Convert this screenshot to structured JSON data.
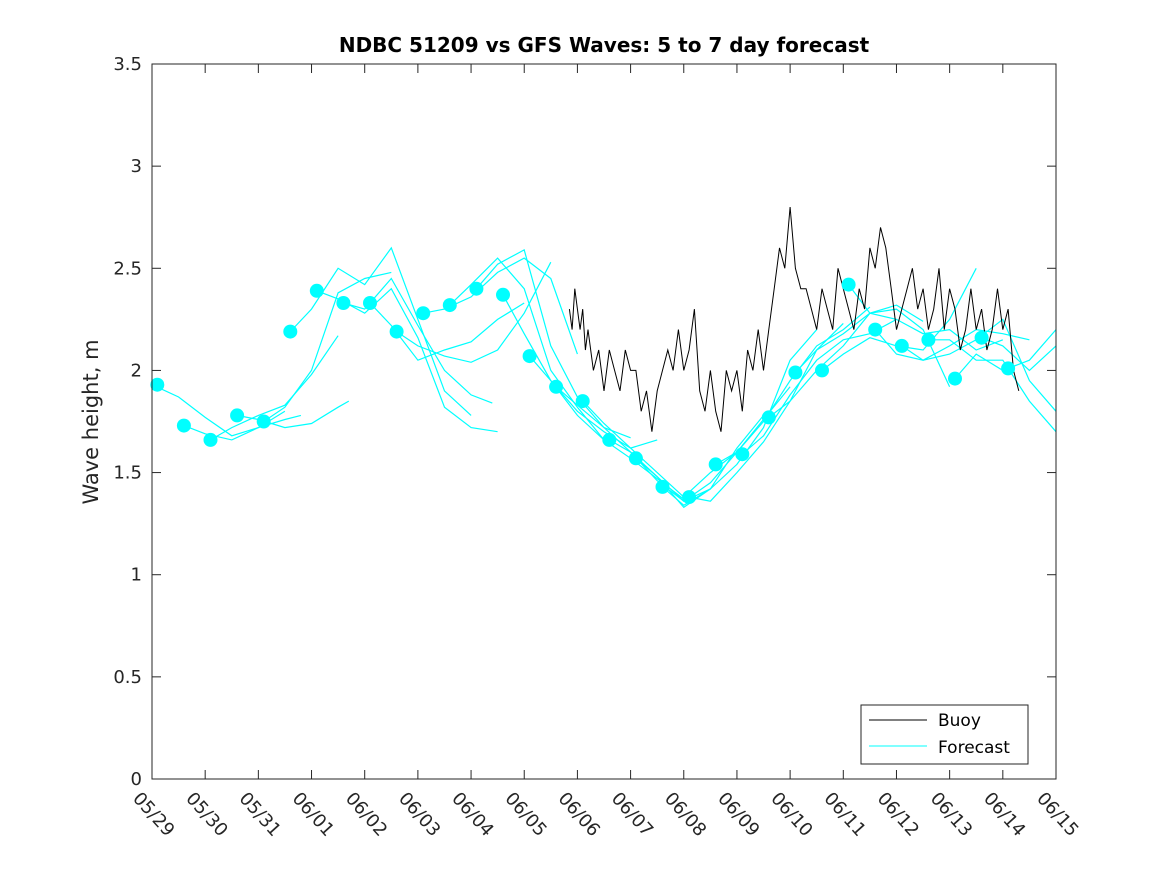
{
  "chart_data": {
    "type": "line",
    "title": "NDBC 51209 vs GFS Waves: 5 to 7 day forecast",
    "xlabel": "",
    "ylabel": "Wave height, m",
    "xlim": [
      0,
      17
    ],
    "ylim": [
      0,
      3.5
    ],
    "x_tick_labels": [
      "05/29",
      "05/30",
      "05/31",
      "06/01",
      "06/02",
      "06/03",
      "06/04",
      "06/05",
      "06/06",
      "06/07",
      "06/08",
      "06/09",
      "06/10",
      "06/11",
      "06/12",
      "06/13",
      "06/14",
      "06/15"
    ],
    "y_ticks": [
      0,
      0.5,
      1,
      1.5,
      2,
      2.5,
      3,
      3.5
    ],
    "y_tick_labels": [
      "0",
      "0.5",
      "1",
      "1.5",
      "2",
      "2.5",
      "3",
      "3.5"
    ],
    "grid": false,
    "legend": {
      "placement": "bottom-right",
      "entries": [
        "Buoy",
        "Forecast"
      ]
    },
    "colors": {
      "buoy": "#000000",
      "forecast": "#00ffff"
    },
    "series": [
      {
        "name": "Buoy",
        "x": [
          7.85,
          7.9,
          7.95,
          8.0,
          8.05,
          8.1,
          8.15,
          8.2,
          8.3,
          8.4,
          8.5,
          8.6,
          8.7,
          8.8,
          8.9,
          9.0,
          9.1,
          9.2,
          9.3,
          9.4,
          9.5,
          9.6,
          9.7,
          9.8,
          9.9,
          10.0,
          10.1,
          10.2,
          10.3,
          10.4,
          10.5,
          10.6,
          10.7,
          10.8,
          10.9,
          11.0,
          11.1,
          11.2,
          11.3,
          11.4,
          11.5,
          11.6,
          11.7,
          11.8,
          11.9,
          12.0,
          12.1,
          12.2,
          12.3,
          12.4,
          12.5,
          12.6,
          12.7,
          12.8,
          12.9,
          13.0,
          13.1,
          13.2,
          13.3,
          13.4,
          13.5,
          13.6,
          13.7,
          13.8,
          13.9,
          14.0,
          14.1,
          14.2,
          14.3,
          14.4,
          14.5,
          14.6,
          14.7,
          14.8,
          14.9,
          15.0,
          15.1,
          15.2,
          15.3,
          15.4,
          15.5,
          15.6,
          15.7,
          15.8,
          15.9,
          16.0,
          16.1,
          16.2,
          16.3
        ],
        "values": [
          2.3,
          2.2,
          2.4,
          2.3,
          2.2,
          2.3,
          2.1,
          2.2,
          2.0,
          2.1,
          1.9,
          2.1,
          2.0,
          1.9,
          2.1,
          2.0,
          2.0,
          1.8,
          1.9,
          1.7,
          1.9,
          2.0,
          2.1,
          2.0,
          2.2,
          2.0,
          2.1,
          2.3,
          1.9,
          1.8,
          2.0,
          1.8,
          1.7,
          2.0,
          1.9,
          2.0,
          1.8,
          2.1,
          2.0,
          2.2,
          2.0,
          2.2,
          2.4,
          2.6,
          2.5,
          2.8,
          2.5,
          2.4,
          2.4,
          2.3,
          2.2,
          2.4,
          2.3,
          2.2,
          2.5,
          2.4,
          2.3,
          2.2,
          2.4,
          2.3,
          2.6,
          2.5,
          2.7,
          2.6,
          2.4,
          2.2,
          2.3,
          2.4,
          2.5,
          2.3,
          2.4,
          2.2,
          2.3,
          2.5,
          2.2,
          2.4,
          2.3,
          2.1,
          2.2,
          2.4,
          2.2,
          2.3,
          2.1,
          2.2,
          2.4,
          2.2,
          2.3,
          2.0,
          1.9
        ]
      },
      {
        "name": "Forecast",
        "lines": [
          {
            "x": [
              0.0,
              0.5,
              1.0,
              1.5,
              2.0,
              2.5
            ],
            "values": [
              1.93,
              1.87,
              1.77,
              1.68,
              1.72,
              1.8
            ]
          },
          {
            "x": [
              0.6,
              1.0,
              1.5,
              2.0,
              2.5,
              2.8
            ],
            "values": [
              1.73,
              1.69,
              1.66,
              1.72,
              1.76,
              1.78
            ]
          },
          {
            "x": [
              1.1,
              1.5,
              2.0,
              2.5,
              3.0,
              3.5
            ],
            "values": [
              1.66,
              1.72,
              1.78,
              1.83,
              1.98,
              2.17
            ]
          },
          {
            "x": [
              1.6,
              2.0,
              2.5,
              3.0,
              3.5,
              3.7
            ],
            "values": [
              1.78,
              1.76,
              1.72,
              1.74,
              1.82,
              1.85
            ]
          },
          {
            "x": [
              2.1,
              2.5,
              3.0,
              3.5,
              4.0,
              4.5
            ],
            "values": [
              1.75,
              1.82,
              2.0,
              2.38,
              2.45,
              2.48
            ]
          },
          {
            "x": [
              2.6,
              3.0,
              3.5,
              4.0,
              4.5,
              5.0,
              5.5,
              6.0
            ],
            "values": [
              2.19,
              2.3,
              2.5,
              2.42,
              2.6,
              2.25,
              1.9,
              1.78
            ]
          },
          {
            "x": [
              3.1,
              3.5,
              4.0,
              4.5,
              5.0,
              5.5,
              6.0,
              6.5
            ],
            "values": [
              2.39,
              2.35,
              2.28,
              2.4,
              2.16,
              1.82,
              1.72,
              1.7
            ]
          },
          {
            "x": [
              3.6,
              4.0,
              4.5,
              5.0,
              5.5,
              6.0,
              6.4
            ],
            "values": [
              2.33,
              2.3,
              2.45,
              2.22,
              2.0,
              1.88,
              1.84
            ]
          },
          {
            "x": [
              4.1,
              4.5,
              5.0,
              5.5,
              6.0,
              6.5,
              7.0
            ],
            "values": [
              2.33,
              2.22,
              2.05,
              2.1,
              2.14,
              2.25,
              2.33
            ]
          },
          {
            "x": [
              4.6,
              5.0,
              5.5,
              6.0,
              6.5,
              7.0,
              7.5
            ],
            "values": [
              2.19,
              2.12,
              2.07,
              2.04,
              2.1,
              2.28,
              2.53
            ]
          },
          {
            "x": [
              5.1,
              5.5,
              6.0,
              6.5,
              7.0,
              7.5,
              8.0
            ],
            "values": [
              2.28,
              2.3,
              2.36,
              2.48,
              2.55,
              2.45,
              2.08
            ]
          },
          {
            "x": [
              5.6,
              6.0,
              6.5,
              7.0,
              7.5,
              8.0,
              8.5
            ],
            "values": [
              2.32,
              2.42,
              2.55,
              2.4,
              2.0,
              1.82,
              1.66
            ]
          },
          {
            "x": [
              6.1,
              6.5,
              7.0,
              7.5,
              8.0,
              8.5,
              9.0
            ],
            "values": [
              2.4,
              2.52,
              2.59,
              2.12,
              1.87,
              1.72,
              1.67
            ]
          },
          {
            "x": [
              6.6,
              7.0,
              7.5,
              8.0,
              8.5,
              9.0,
              9.5
            ],
            "values": [
              2.37,
              2.18,
              1.95,
              1.8,
              1.7,
              1.62,
              1.66
            ]
          },
          {
            "x": [
              7.1,
              7.5,
              8.0,
              8.5,
              9.0,
              9.5,
              10.0
            ],
            "values": [
              2.07,
              1.95,
              1.78,
              1.66,
              1.57,
              1.47,
              1.37
            ]
          },
          {
            "x": [
              7.6,
              8.0,
              8.5,
              9.0,
              9.5,
              10.0,
              10.5
            ],
            "values": [
              1.92,
              1.83,
              1.72,
              1.6,
              1.46,
              1.36,
              1.42
            ]
          },
          {
            "x": [
              8.1,
              8.5,
              9.0,
              9.5,
              10.0,
              10.5,
              11.0
            ],
            "values": [
              1.85,
              1.74,
              1.62,
              1.5,
              1.38,
              1.5,
              1.6
            ]
          },
          {
            "x": [
              8.6,
              9.0,
              9.5,
              10.0,
              10.5,
              11.0,
              11.5
            ],
            "values": [
              1.66,
              1.6,
              1.48,
              1.33,
              1.42,
              1.62,
              1.78
            ]
          },
          {
            "x": [
              9.1,
              9.5,
              10.0,
              10.5,
              11.0,
              11.5,
              12.0
            ],
            "values": [
              1.57,
              1.48,
              1.36,
              1.45,
              1.6,
              1.76,
              1.92
            ]
          },
          {
            "x": [
              9.6,
              10.0,
              10.5,
              11.0,
              11.5,
              12.0,
              12.5
            ],
            "values": [
              1.43,
              1.34,
              1.42,
              1.54,
              1.72,
              2.05,
              2.2
            ]
          },
          {
            "x": [
              10.1,
              10.5,
              11.0,
              11.5,
              12.0,
              12.5,
              13.0
            ],
            "values": [
              1.38,
              1.36,
              1.5,
              1.65,
              1.85,
              2.1,
              2.23
            ]
          },
          {
            "x": [
              10.6,
              11.0,
              11.5,
              12.0,
              12.5,
              13.0,
              13.5
            ],
            "values": [
              1.54,
              1.6,
              1.75,
              1.95,
              2.12,
              2.2,
              2.31
            ]
          },
          {
            "x": [
              11.1,
              11.5,
              12.0,
              12.5,
              13.0,
              13.5,
              14.0
            ],
            "values": [
              1.59,
              1.68,
              1.88,
              2.05,
              2.15,
              2.18,
              2.25
            ]
          },
          {
            "x": [
              11.6,
              12.0,
              12.5,
              13.0,
              13.5,
              14.0,
              14.5
            ],
            "values": [
              1.77,
              1.85,
              2.0,
              2.12,
              2.28,
              2.32,
              2.24
            ]
          },
          {
            "x": [
              12.1,
              12.5,
              13.0,
              13.5,
              14.0,
              14.5,
              15.0
            ],
            "values": [
              1.99,
              2.1,
              2.18,
              2.28,
              2.3,
              2.2,
              1.92
            ]
          },
          {
            "x": [
              12.6,
              13.0,
              13.5,
              14.0,
              14.5,
              15.0,
              15.5
            ],
            "values": [
              2.0,
              2.08,
              2.16,
              2.12,
              2.1,
              2.25,
              2.5
            ]
          },
          {
            "x": [
              13.1,
              13.5,
              14.0,
              14.5,
              15.0,
              15.5,
              16.0
            ],
            "values": [
              2.42,
              2.28,
              2.25,
              2.18,
              2.2,
              2.1,
              2.15
            ]
          },
          {
            "x": [
              13.6,
              14.0,
              14.5,
              15.0,
              15.5,
              16.0,
              16.5
            ],
            "values": [
              2.2,
              2.08,
              2.05,
              2.12,
              2.2,
              2.18,
              2.15
            ]
          },
          {
            "x": [
              14.1,
              14.5,
              15.0,
              15.5,
              16.0,
              16.5,
              17.0
            ],
            "values": [
              2.12,
              2.05,
              2.08,
              2.15,
              2.25,
              1.95,
              1.8
            ]
          },
          {
            "x": [
              14.6,
              15.0,
              15.5,
              16.0,
              16.5,
              17.0
            ],
            "values": [
              2.15,
              2.15,
              2.05,
              2.05,
              1.85,
              1.7
            ]
          },
          {
            "x": [
              15.1,
              15.5,
              16.0,
              16.5,
              17.0
            ],
            "values": [
              1.96,
              2.08,
              2.0,
              2.05,
              2.2
            ]
          },
          {
            "x": [
              15.6,
              16.0,
              16.5,
              17.0
            ],
            "values": [
              2.16,
              2.12,
              2.0,
              2.12
            ]
          }
        ],
        "markers": {
          "x": [
            0.1,
            0.6,
            1.1,
            1.6,
            2.1,
            2.6,
            3.1,
            3.6,
            4.1,
            4.6,
            5.1,
            5.6,
            6.1,
            6.6,
            7.1,
            7.6,
            8.1,
            8.6,
            9.1,
            9.6,
            10.1,
            10.6,
            11.1,
            11.6,
            12.1,
            12.6,
            13.1,
            13.6,
            14.1,
            14.6,
            15.1,
            15.6,
            16.1
          ],
          "values": [
            1.93,
            1.73,
            1.66,
            1.78,
            1.75,
            2.19,
            2.39,
            2.33,
            2.33,
            2.19,
            2.28,
            2.32,
            2.4,
            2.37,
            2.07,
            1.92,
            1.85,
            1.66,
            1.57,
            1.43,
            1.38,
            1.54,
            1.59,
            1.77,
            1.99,
            2.0,
            2.42,
            2.2,
            2.12,
            2.15,
            1.96,
            2.16,
            2.01
          ]
        }
      }
    ]
  }
}
